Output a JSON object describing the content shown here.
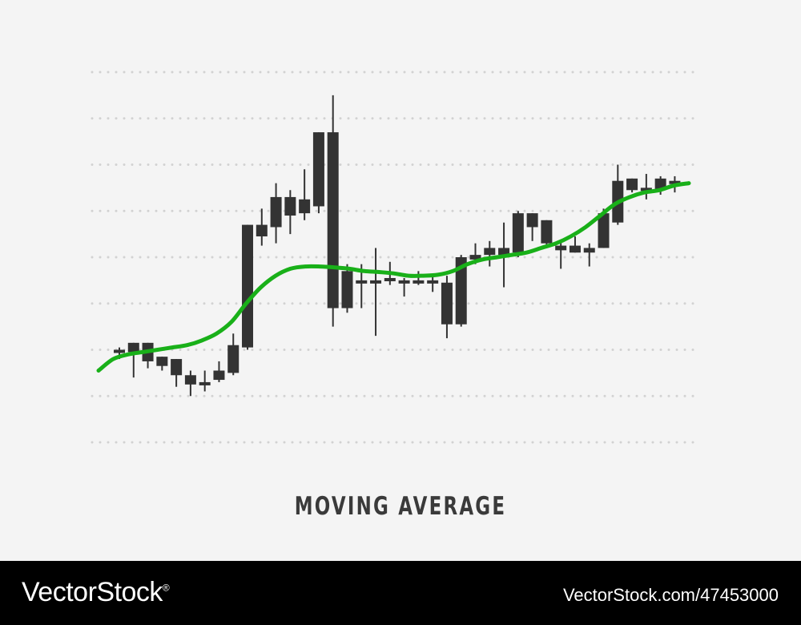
{
  "chart_data": {
    "type": "candlestick",
    "title": "MOVING AVERAGE",
    "y_range": [
      0,
      8
    ],
    "grid": true,
    "grid_style": "dotted",
    "colors": {
      "candle": "#333333",
      "moving_average": "#19b019",
      "grid": "#d2d2d2",
      "title": "#3a3a3a"
    },
    "candles": [
      {
        "open": 1.95,
        "high": 2.05,
        "low": 1.8,
        "close": 2.0
      },
      {
        "open": 1.95,
        "high": 2.15,
        "low": 1.4,
        "close": 2.15
      },
      {
        "open": 2.15,
        "high": 2.15,
        "low": 1.6,
        "close": 1.75
      },
      {
        "open": 1.85,
        "high": 1.85,
        "low": 1.55,
        "close": 1.65
      },
      {
        "open": 1.8,
        "high": 1.8,
        "low": 1.2,
        "close": 1.45
      },
      {
        "open": 1.45,
        "high": 1.55,
        "low": 1.0,
        "close": 1.25
      },
      {
        "open": 1.3,
        "high": 1.55,
        "low": 1.1,
        "close": 1.25
      },
      {
        "open": 1.35,
        "high": 1.75,
        "low": 1.3,
        "close": 1.55
      },
      {
        "open": 1.5,
        "high": 2.35,
        "low": 1.45,
        "close": 2.1
      },
      {
        "open": 2.05,
        "high": 4.7,
        "low": 2.0,
        "close": 4.7
      },
      {
        "open": 4.45,
        "high": 5.05,
        "low": 4.25,
        "close": 4.7
      },
      {
        "open": 4.65,
        "high": 5.6,
        "low": 4.3,
        "close": 5.3
      },
      {
        "open": 4.9,
        "high": 5.45,
        "low": 4.5,
        "close": 5.3
      },
      {
        "open": 4.95,
        "high": 5.9,
        "low": 4.8,
        "close": 5.25
      },
      {
        "open": 5.1,
        "high": 6.7,
        "low": 4.95,
        "close": 6.7
      },
      {
        "open": 6.7,
        "high": 7.5,
        "low": 2.5,
        "close": 2.9
      },
      {
        "open": 2.9,
        "high": 3.85,
        "low": 2.8,
        "close": 3.7
      },
      {
        "open": 3.5,
        "high": 3.85,
        "low": 2.9,
        "close": 3.45
      },
      {
        "open": 3.5,
        "high": 4.2,
        "low": 2.3,
        "close": 3.5
      },
      {
        "open": 3.55,
        "high": 3.9,
        "low": 3.4,
        "close": 3.55
      },
      {
        "open": 3.5,
        "high": 3.55,
        "low": 3.15,
        "close": 3.45
      },
      {
        "open": 3.45,
        "high": 3.7,
        "low": 3.4,
        "close": 3.5
      },
      {
        "open": 3.5,
        "high": 3.6,
        "low": 3.25,
        "close": 3.5
      },
      {
        "open": 3.45,
        "high": 3.6,
        "low": 2.25,
        "close": 2.55
      },
      {
        "open": 2.55,
        "high": 4.05,
        "low": 2.5,
        "close": 4.0
      },
      {
        "open": 3.95,
        "high": 4.3,
        "low": 3.85,
        "close": 4.05
      },
      {
        "open": 4.05,
        "high": 4.35,
        "low": 3.8,
        "close": 4.2
      },
      {
        "open": 4.05,
        "high": 4.75,
        "low": 3.35,
        "close": 4.2
      },
      {
        "open": 4.1,
        "high": 5.0,
        "low": 4.0,
        "close": 4.95
      },
      {
        "open": 4.95,
        "high": 4.95,
        "low": 4.35,
        "close": 4.65
      },
      {
        "open": 4.8,
        "high": 4.8,
        "low": 4.2,
        "close": 4.3
      },
      {
        "open": 4.25,
        "high": 4.35,
        "low": 3.75,
        "close": 4.15
      },
      {
        "open": 4.25,
        "high": 4.45,
        "low": 4.1,
        "close": 4.1
      },
      {
        "open": 4.1,
        "high": 4.3,
        "low": 3.8,
        "close": 4.2
      },
      {
        "open": 4.2,
        "high": 5.05,
        "low": 4.2,
        "close": 4.95
      },
      {
        "open": 4.75,
        "high": 6.0,
        "low": 4.7,
        "close": 5.65
      },
      {
        "open": 5.45,
        "high": 5.7,
        "low": 5.4,
        "close": 5.7
      },
      {
        "open": 5.45,
        "high": 5.8,
        "low": 5.25,
        "close": 5.5
      },
      {
        "open": 5.45,
        "high": 5.75,
        "low": 5.35,
        "close": 5.7
      },
      {
        "open": 5.65,
        "high": 5.75,
        "low": 5.4,
        "close": 5.6
      }
    ],
    "moving_average": [
      1.55,
      1.8,
      1.9,
      1.95,
      2.0,
      2.05,
      2.1,
      2.2,
      2.35,
      2.6,
      3.0,
      3.35,
      3.6,
      3.75,
      3.8,
      3.8,
      3.78,
      3.75,
      3.7,
      3.68,
      3.65,
      3.6,
      3.6,
      3.62,
      3.7,
      3.85,
      3.95,
      4.0,
      4.05,
      4.1,
      4.2,
      4.3,
      4.45,
      4.65,
      4.9,
      5.15,
      5.3,
      5.4,
      5.45,
      5.55,
      5.6
    ]
  },
  "footer": {
    "brand": "VectorStock",
    "brand_mark": "®",
    "image_id": "VectorStock.com/47453000"
  }
}
